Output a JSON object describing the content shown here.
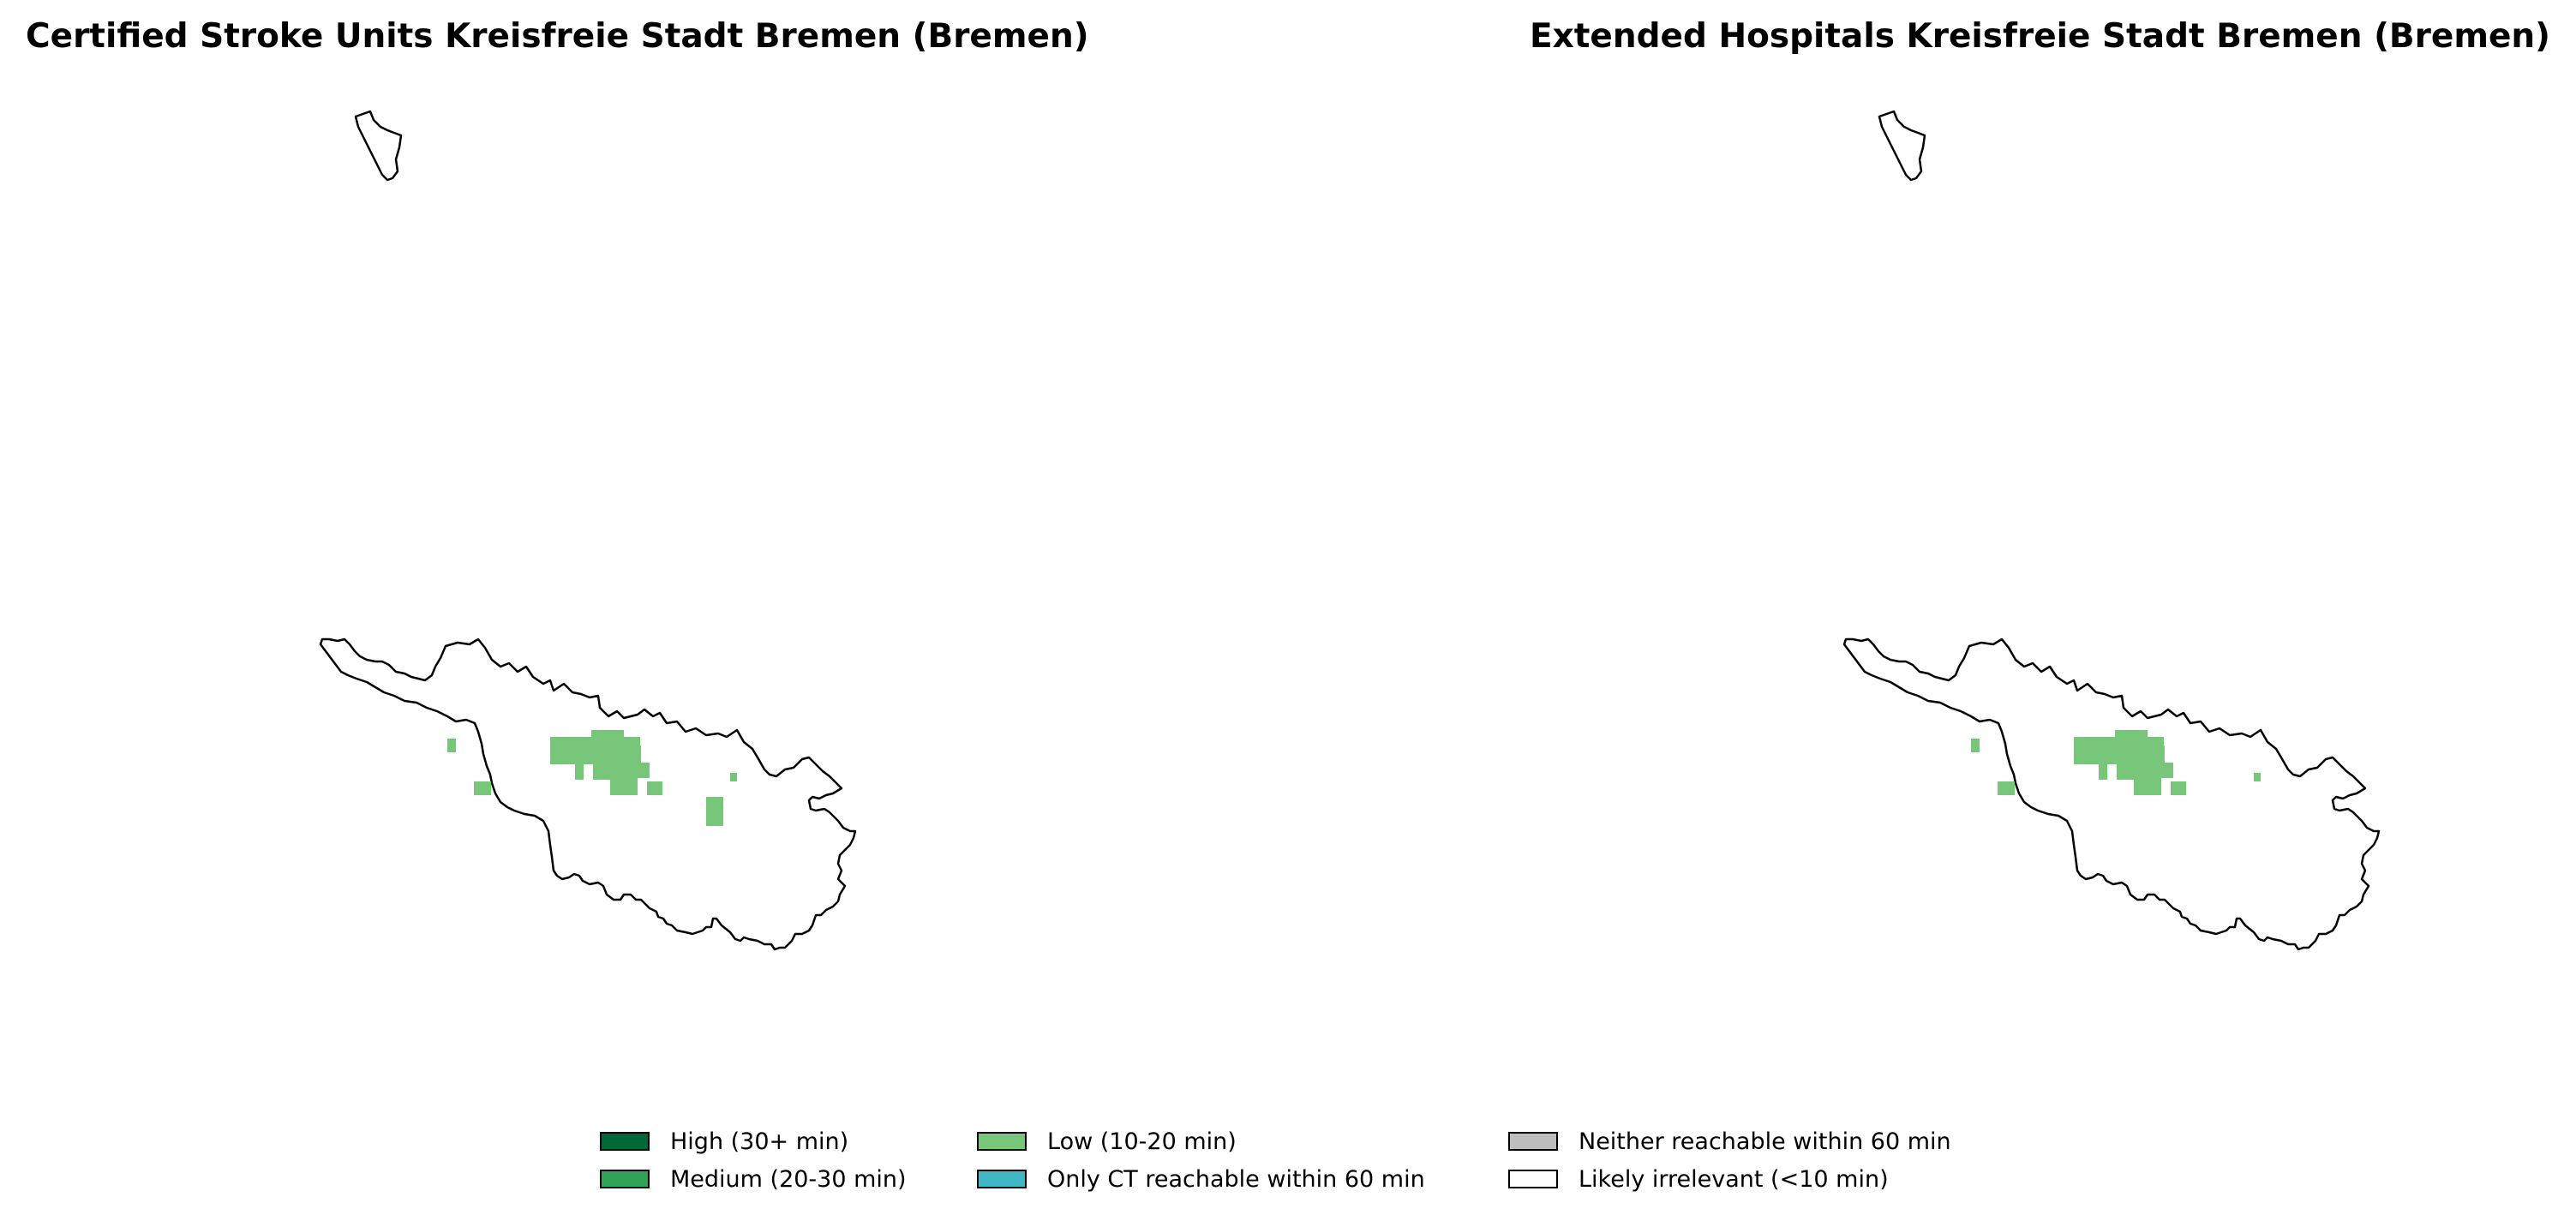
{
  "panels": [
    {
      "title": "Certified Stroke Units Kreisfreie Stadt Bremen (Bremen)"
    },
    {
      "title": "Extended Hospitals Kreisfreie Stadt Bremen (Bremen)"
    }
  ],
  "legend": [
    {
      "label": "High (30+ min)",
      "color": "#006837"
    },
    {
      "label": "Low (10-20 min)",
      "color": "#78c679"
    },
    {
      "label": "Neither reachable within 60 min",
      "color": "#bdbdbd"
    },
    {
      "label": "Medium (20-30 min)",
      "color": "#31a354"
    },
    {
      "label": "Only CT reachable within 60 min",
      "color": "#41b6c4"
    },
    {
      "label": "Likely irrelevant (<10 min)",
      "color": "#ffffff"
    }
  ],
  "map": {
    "region": "Kreisfreie Stadt Bremen (Bremen)",
    "category_shown": "Low (10-20 min)",
    "category_color": "#78c679",
    "outline_color": "#000000"
  }
}
